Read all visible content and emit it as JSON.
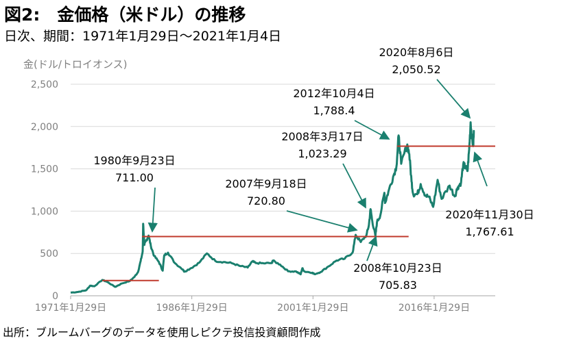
{
  "title": "図2:　金価格（米ドル）の推移",
  "subtitle": "日次、期間：1971年1月29日～2021年1月4日",
  "source": "出所：ブルームバーグのデータを使用しピクテ投信投資顧問作成",
  "colors": {
    "series": "#1a7f6e",
    "reference_line": "#c0392b",
    "arrow": "#1a7f6e"
  },
  "chart_data": {
    "type": "line",
    "ylabel": "金(ドル/トロイオンス)",
    "ylim": [
      0,
      2500
    ],
    "yticks": [
      0,
      500,
      1000,
      1500,
      2000,
      2500
    ],
    "ytick_labels": [
      "0",
      "500",
      "1,000",
      "1,500",
      "2,000",
      "2,500"
    ],
    "xlim": [
      "1971-01-29",
      "2021-01-04"
    ],
    "xticks": [
      "1971-01-29",
      "1986-01-29",
      "2001-01-29",
      "2016-01-29"
    ],
    "xtick_labels": [
      "1971年1月29日",
      "1986年1月29日",
      "2001年1月29日",
      "2016年1月29日"
    ],
    "grid": "horizontal",
    "series": [
      {
        "x": [
          "1971-01-29",
          "1972-01-01",
          "1972-12-31",
          "1973-07-01",
          "1973-12-31",
          "1974-12-31",
          "1975-08-01",
          "1976-08-01",
          "1977-06-01",
          "1978-06-01",
          "1978-12-31",
          "1979-06-01",
          "1979-10-01",
          "1979-12-31",
          "1980-01-21",
          "1980-03-15",
          "1980-06-01",
          "1980-09-23",
          "1981-01-01",
          "1981-06-01",
          "1981-12-31",
          "1982-06-21",
          "1982-09-01",
          "1983-02-15",
          "1983-12-31",
          "1984-12-31",
          "1985-02-25",
          "1985-12-31",
          "1986-12-31",
          "1987-12-14",
          "1988-12-31",
          "1989-12-31",
          "1990-12-31",
          "1991-12-31",
          "1992-12-31",
          "1993-07-30",
          "1993-12-31",
          "1994-12-31",
          "1995-12-31",
          "1996-02-02",
          "1996-12-31",
          "1997-12-31",
          "1998-12-31",
          "1999-07-20",
          "1999-10-05",
          "1999-12-31",
          "2000-12-31",
          "2001-04-02",
          "2001-12-31",
          "2002-12-31",
          "2003-12-31",
          "2004-12-31",
          "2005-12-31",
          "2006-05-12",
          "2006-12-31",
          "2007-09-18",
          "2007-12-31",
          "2008-03-17",
          "2008-06-01",
          "2008-10-23",
          "2008-12-31",
          "2009-06-01",
          "2009-12-02",
          "2009-12-31",
          "2010-06-01",
          "2010-12-31",
          "2011-06-01",
          "2011-09-06",
          "2011-12-31",
          "2012-10-04",
          "2012-12-31",
          "2013-04-15",
          "2013-06-28",
          "2013-12-31",
          "2014-06-01",
          "2014-12-31",
          "2015-06-01",
          "2015-12-17",
          "2016-07-06",
          "2016-12-31",
          "2017-12-31",
          "2018-08-16",
          "2018-12-31",
          "2019-06-01",
          "2019-09-04",
          "2019-12-31",
          "2020-03-19",
          "2020-06-01",
          "2020-08-06",
          "2020-09-30",
          "2020-11-30",
          "2021-01-04"
        ],
        "values": [
          38,
          45,
          65,
          120,
          112,
          187,
          165,
          105,
          145,
          175,
          226,
          280,
          410,
          524,
          850,
          600,
          650,
          711,
          590,
          470,
          400,
          297,
          480,
          510,
          385,
          309,
          285,
          327,
          391,
          500,
          411,
          399,
          386,
          353,
          333,
          406,
          387,
          383,
          387,
          415,
          369,
          290,
          287,
          253,
          325,
          288,
          273,
          256,
          279,
          347,
          417,
          438,
          513,
          720,
          635,
          720.8,
          834,
          1023.29,
          885,
          705.83,
          870,
          950,
          1217,
          1096,
          1230,
          1405,
          1530,
          1895,
          1560,
          1788.4,
          1675,
          1350,
          1200,
          1200,
          1320,
          1185,
          1170,
          1050,
          1370,
          1145,
          1302,
          1174,
          1281,
          1340,
          1550,
          1517,
          1474,
          1730,
          2050.52,
          1880,
          1767.61,
          1945
        ]
      }
    ],
    "reference_lines": [
      {
        "from": "1975-01-01",
        "to": "1982-01-01",
        "value": 180
      },
      {
        "from": "1979-12-01",
        "to": "2012-12-01",
        "value": 700
      },
      {
        "from": "2011-07-01",
        "to": "2024-06-01",
        "value": 1767.61
      }
    ],
    "annotations": [
      {
        "date_label": "1980年9月23日",
        "value_label": "711.00",
        "x": "1980-09-23",
        "y": 711.0
      },
      {
        "date_label": "2007年9月18日",
        "value_label": "720.80",
        "x": "2007-09-18",
        "y": 720.8
      },
      {
        "date_label": "2008年3月17日",
        "value_label": "1,023.29",
        "x": "2008-03-17",
        "y": 1023.29
      },
      {
        "date_label": "2008年10月23日",
        "value_label": "705.83",
        "x": "2008-10-23",
        "y": 705.83
      },
      {
        "date_label": "2012年10月4日",
        "value_label": "1,788.4",
        "x": "2012-10-04",
        "y": 1788.4
      },
      {
        "date_label": "2020年8月6日",
        "value_label": "2,050.52",
        "x": "2020-08-06",
        "y": 2050.52
      },
      {
        "date_label": "2020年11月30日",
        "value_label": "1,767.61",
        "x": "2020-11-30",
        "y": 1767.61
      }
    ]
  }
}
